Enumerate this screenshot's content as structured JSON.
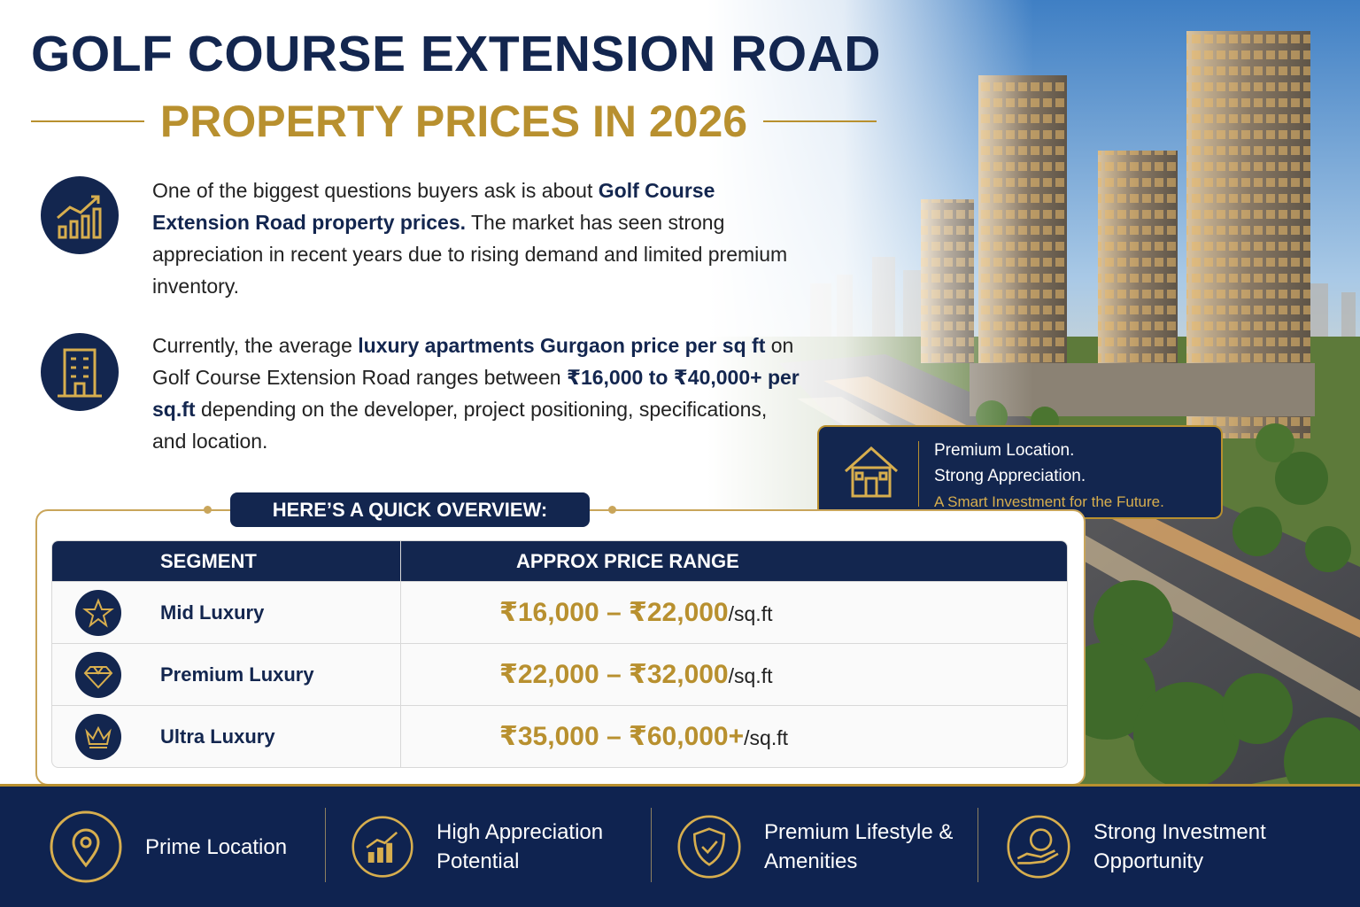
{
  "header": {
    "title": "GOLF COURSE EXTENSION ROAD",
    "subtitle": "PROPERTY PRICES IN 2026"
  },
  "intro": {
    "paragraphs": [
      [
        "One of the biggest questions buyers ask is about ",
        "Golf Course Extension Road property prices.",
        " The market has seen strong appreciation in recent years due to rising demand and limited premium inventory."
      ],
      [
        "Currently, the average ",
        "luxury apartments Gurgaon price per sq ft",
        " on Golf Course Extension Road ranges between ",
        "₹16,000 to ₹40,000+ per sq.ft",
        " depending on the developer, project positioning, specifications, and location."
      ]
    ]
  },
  "callout": {
    "lines": [
      "Premium Location.",
      "Strong Appreciation.",
      "A Smart Investment for the Future."
    ]
  },
  "overview": {
    "label": "HERE’S A QUICK OVERVIEW:",
    "table": {
      "headers": [
        "SEGMENT",
        "APPROX PRICE RANGE"
      ],
      "rows": [
        [
          "Mid Luxury",
          "₹16,000 – ₹22,000",
          "/sq.ft"
        ],
        [
          "Premium Luxury",
          "₹22,000 – ₹32,000",
          "/sq.ft"
        ],
        [
          "Ultra Luxury",
          "₹35,000 – ₹60,000+",
          "/sq.ft"
        ]
      ]
    }
  },
  "features": [
    "Prime Location",
    "High Appreciation Potential",
    "Premium Lifestyle & Amenities",
    "Strong Investment Opportunity"
  ]
}
